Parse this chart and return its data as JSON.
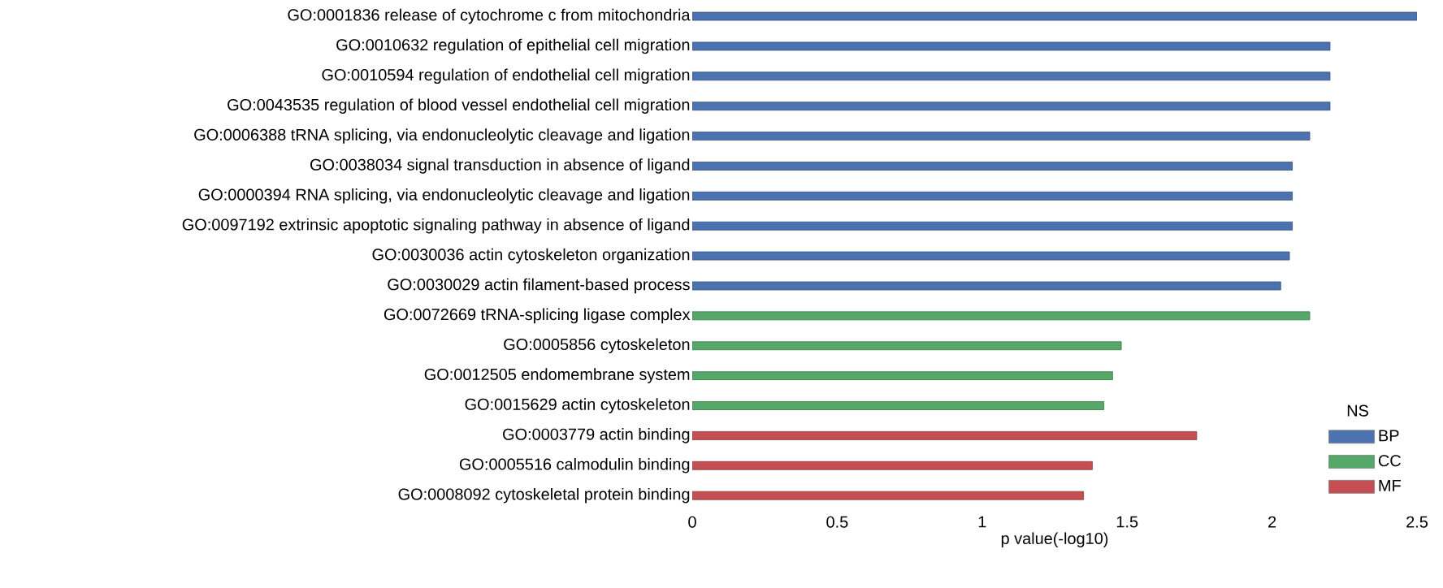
{
  "chart_data": {
    "type": "bar",
    "orientation": "horizontal",
    "xlabel": "p value(-log10)",
    "legend_title": "NS",
    "legend": "bottom right",
    "categories": [
      "GO:0001836 release of cytochrome c from mitochondria",
      "GO:0010632 regulation of epithelial cell migration",
      "GO:0010594 regulation of endothelial cell migration",
      "GO:0043535 regulation of blood vessel endothelial cell migration",
      "GO:0006388 tRNA splicing, via endonucleolytic cleavage and ligation",
      "GO:0038034 signal transduction in absence of ligand",
      "GO:0000394 RNA splicing, via endonucleolytic cleavage and ligation",
      "GO:0097192 extrinsic apoptotic signaling pathway in absence of ligand",
      "GO:0030036 actin cytoskeleton organization",
      "GO:0030029 actin filament-based process",
      "GO:0072669 tRNA-splicing ligase complex",
      "GO:0005856 cytoskeleton",
      "GO:0012505 endomembrane system",
      "GO:0015629 actin cytoskeleton",
      "GO:0003779 actin binding",
      "GO:0005516 calmodulin binding",
      "GO:0008092 cytoskeletal protein binding"
    ],
    "series": [
      {
        "name": "BP",
        "color": "#4c72b0",
        "values": [
          2.5,
          2.2,
          2.2,
          2.2,
          2.13,
          2.07,
          2.07,
          2.07,
          2.06,
          2.03,
          null,
          null,
          null,
          null,
          null,
          null,
          null
        ]
      },
      {
        "name": "CC",
        "color": "#55a868",
        "values": [
          null,
          null,
          null,
          null,
          null,
          null,
          null,
          null,
          null,
          null,
          2.13,
          1.48,
          1.45,
          1.42,
          null,
          null,
          null
        ]
      },
      {
        "name": "MF",
        "color": "#c44e52",
        "values": [
          null,
          null,
          null,
          null,
          null,
          null,
          null,
          null,
          null,
          null,
          null,
          null,
          null,
          null,
          1.74,
          1.38,
          1.35
        ]
      }
    ],
    "xlim": [
      0,
      2.5
    ],
    "xticks": [
      0,
      0.5,
      1,
      1.5,
      2,
      2.5
    ]
  }
}
